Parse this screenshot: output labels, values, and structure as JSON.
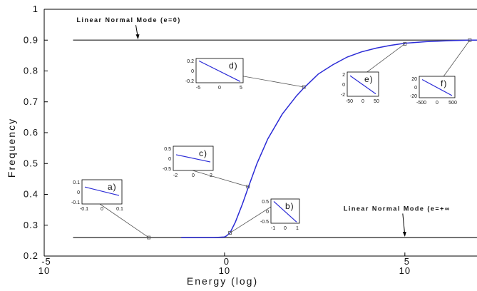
{
  "chart_data": {
    "type": "line",
    "title": "",
    "xlabel": "Energy (log)",
    "ylabel": "Frequency",
    "xscale": "log",
    "xlim": [
      -4.2,
      4.2
    ],
    "ylim": [
      0.2,
      1.0
    ],
    "grid": false,
    "xticks": [
      {
        "value": -5,
        "base": "10",
        "exp": "-5"
      },
      {
        "value": 0,
        "base": "10",
        "exp": "0"
      },
      {
        "value": 5,
        "base": "10",
        "exp": "5"
      }
    ],
    "yticks": [
      {
        "value": 0.2,
        "label": "0.2"
      },
      {
        "value": 0.3,
        "label": "0.3"
      },
      {
        "value": 0.4,
        "label": "0.4"
      },
      {
        "value": 0.5,
        "label": "0.5"
      },
      {
        "value": 0.6,
        "label": "0.6"
      },
      {
        "value": 0.7,
        "label": "0.7"
      },
      {
        "value": 0.8,
        "label": "0.8"
      },
      {
        "value": 0.9,
        "label": "0.9"
      },
      {
        "value": 1.0,
        "label": "1"
      }
    ],
    "reference_lines": [
      {
        "label": "Linear Normal Mode (e=0)",
        "y": 0.9,
        "x_start": -4.2
      },
      {
        "label": "Linear Normal Mode (e=+∞",
        "y": 0.26,
        "x_start": -4.2
      }
    ],
    "series": [
      {
        "color": "#2b2bd6",
        "x": [
          -1.2,
          -0.3,
          0.0,
          0.05,
          0.15,
          0.3,
          0.5,
          0.65,
          0.9,
          1.2,
          1.6,
          2.0,
          2.2,
          2.6,
          3.0,
          3.4,
          3.8,
          4.2,
          4.6,
          5.0,
          5.6,
          6.2,
          6.8,
          7.2
        ],
        "y": [
          0.26,
          0.26,
          0.262,
          0.265,
          0.275,
          0.31,
          0.37,
          0.42,
          0.5,
          0.58,
          0.66,
          0.72,
          0.745,
          0.79,
          0.82,
          0.845,
          0.862,
          0.874,
          0.883,
          0.89,
          0.895,
          0.898,
          0.9,
          0.9
        ]
      }
    ],
    "insets": [
      {
        "letter": "a)",
        "point": [
          -2.1,
          0.26
        ],
        "xticks": [
          "-0.1",
          "0",
          "0.1"
        ],
        "yticks": [
          "0.1",
          "0",
          "-0.1"
        ],
        "slope": [
          0.3,
          0.65
        ]
      },
      {
        "letter": "b)",
        "point": [
          0.15,
          0.275
        ],
        "xticks": [
          "-1",
          "0",
          "1"
        ],
        "yticks": [
          "0.5",
          "0",
          "-0.5"
        ],
        "slope": [
          0.1,
          0.95
        ]
      },
      {
        "letter": "c)",
        "point": [
          0.65,
          0.425
        ],
        "xticks": [
          "-2",
          "0",
          "2"
        ],
        "yticks": [
          "0.5",
          "0",
          "-0.5"
        ],
        "slope": [
          0.35,
          0.65
        ]
      },
      {
        "letter": "d)",
        "point": [
          2.2,
          0.748
        ],
        "xticks": [
          "-5",
          "0",
          "5"
        ],
        "yticks": [
          "0.2",
          "0",
          "-0.2"
        ],
        "slope": [
          0.1,
          0.95
        ]
      },
      {
        "letter": "e)",
        "point": [
          5.0,
          0.888
        ],
        "xticks": [
          "-50",
          "0",
          "50"
        ],
        "yticks": [
          "2",
          "0",
          "-2"
        ],
        "slope": [
          0.15,
          0.9
        ]
      },
      {
        "letter": "f)",
        "point": [
          6.8,
          0.9
        ],
        "xticks": [
          "-500",
          "0",
          "500"
        ],
        "yticks": [
          "20",
          "0",
          "-20"
        ],
        "slope": [
          0.15,
          0.9
        ]
      }
    ]
  }
}
